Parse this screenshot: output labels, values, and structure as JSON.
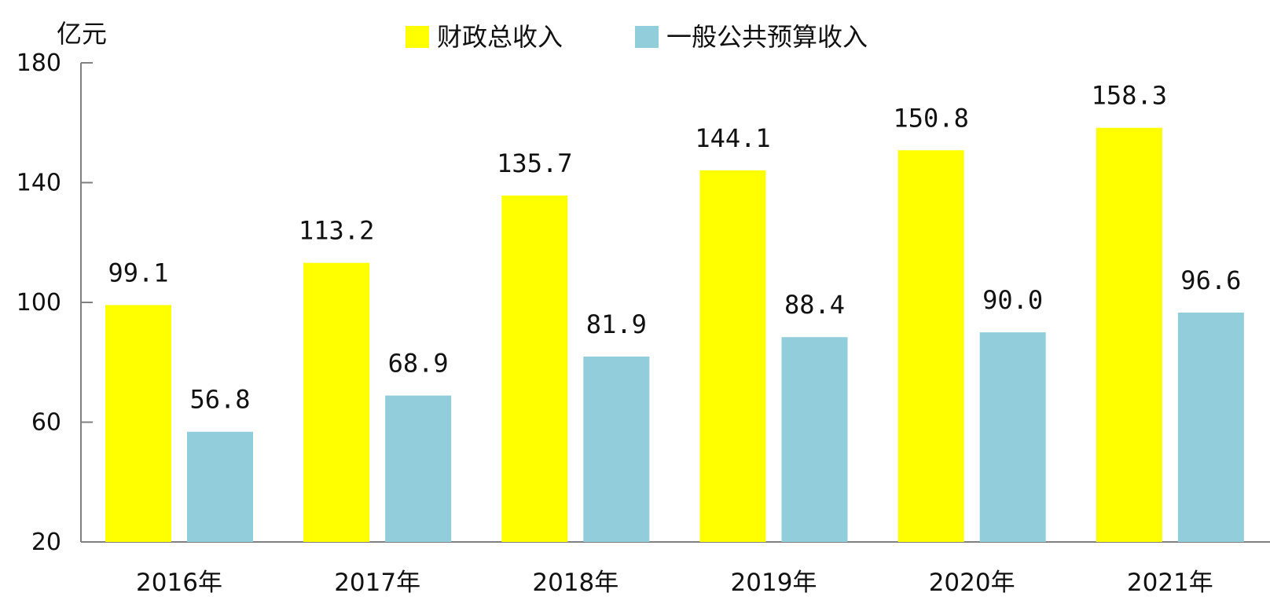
{
  "chart_data": {
    "type": "bar",
    "unit_label": "亿元",
    "categories": [
      "2016年",
      "2017年",
      "2018年",
      "2019年",
      "2020年",
      "2021年"
    ],
    "series": [
      {
        "name": "财政总收入",
        "color": "#FFFF00",
        "values": [
          99.1,
          113.2,
          135.7,
          144.1,
          150.8,
          158.3
        ]
      },
      {
        "name": "一般公共预算收入",
        "color": "#92CDDC",
        "values": [
          56.8,
          68.9,
          81.9,
          88.4,
          90.0,
          96.6
        ]
      }
    ],
    "data_labels": [
      [
        "99.1",
        "113.2",
        "135.7",
        "144.1",
        "150.8",
        "158.3"
      ],
      [
        "56.8",
        "68.9",
        "81.9",
        "88.4",
        "90.0",
        "96.6"
      ]
    ],
    "ylim": [
      20,
      180
    ],
    "yticks": [
      "20",
      "60",
      "100",
      "140",
      "180"
    ],
    "legend_position": "top-center",
    "grid": false
  }
}
